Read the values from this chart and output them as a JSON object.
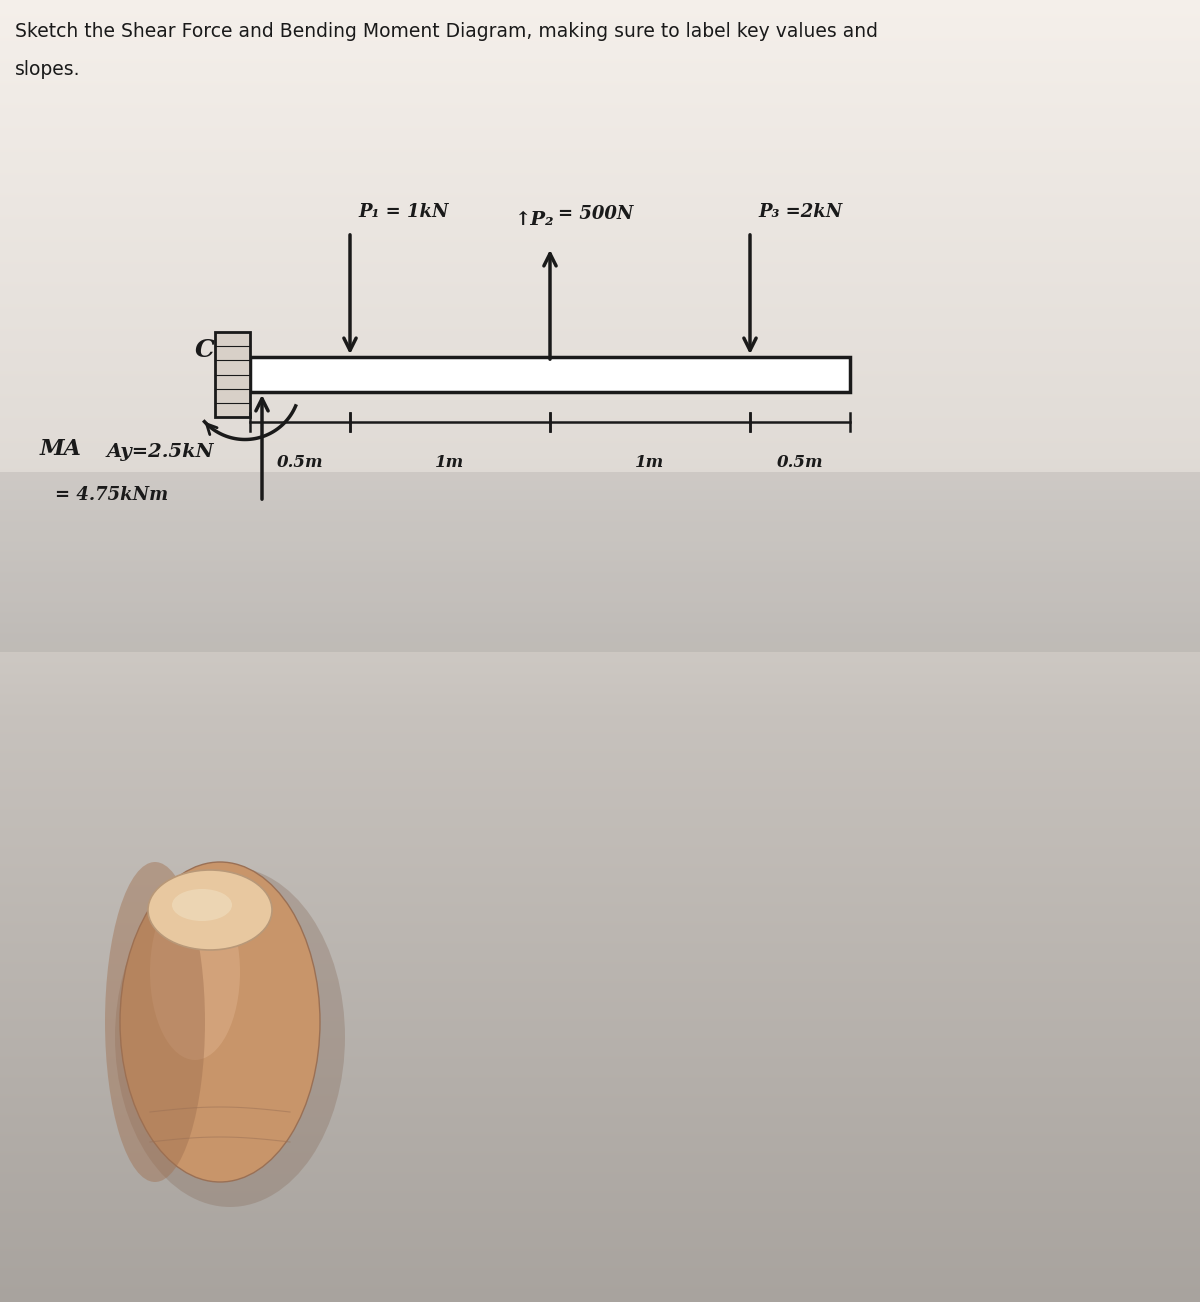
{
  "title_line1": "Sketch the Shear Force and Bending Moment Diagram, making sure to label key values and",
  "title_line2": "slopes.",
  "bg_top": "#e8e4de",
  "bg_bottom": "#b0a898",
  "beam_color": "#1a1a1a",
  "text_color": "#1a1a1a",
  "Ay_label": "Ay=2.5kN",
  "MA_label": "MA",
  "MA_eq": "= 4.75kNm",
  "C_label": "C",
  "P1_label": "P₁ = 1kN",
  "P2_label": "= 500N",
  "P3_label": "P₃ =2kN",
  "dist_labels": [
    "0.5m",
    "1m",
    "1m",
    "0.5m"
  ],
  "finger_color": "#c8956a",
  "finger_highlight": "#ddb08a",
  "finger_shadow": "#a87850",
  "nail_color": "#e8c8a0"
}
